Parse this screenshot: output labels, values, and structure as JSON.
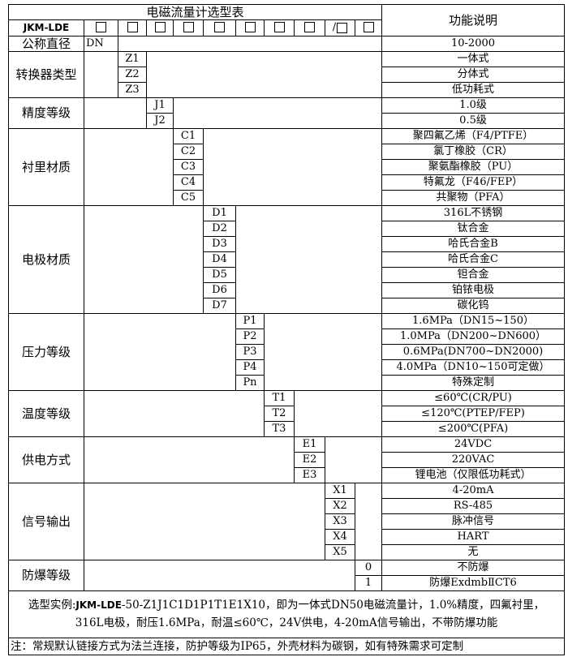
{
  "header": {
    "title": "电磁流量计选型表",
    "function_title": "功能说明",
    "model_prefix": "JKM-LDE",
    "slash": "/"
  },
  "groups": [
    {
      "label": "公称直径",
      "col": 1,
      "rows": [
        {
          "code": "DN",
          "desc": "10-2000"
        }
      ]
    },
    {
      "label": "转换器类型",
      "col": 2,
      "rows": [
        {
          "code": "Z1",
          "desc": "一体式"
        },
        {
          "code": "Z2",
          "desc": "分体式"
        },
        {
          "code": "Z3",
          "desc": "低功耗式"
        }
      ]
    },
    {
      "label": "精度等级",
      "col": 3,
      "rows": [
        {
          "code": "J1",
          "desc": "1.0级"
        },
        {
          "code": "J2",
          "desc": "0.5级"
        }
      ]
    },
    {
      "label": "衬里材质",
      "col": 4,
      "rows": [
        {
          "code": "C1",
          "desc": "聚四氟乙烯（F4/PTFE）"
        },
        {
          "code": "C2",
          "desc": "氯丁橡胶（CR）"
        },
        {
          "code": "C3",
          "desc": "聚氨酯橡胶（PU）"
        },
        {
          "code": "C4",
          "desc": "特氟龙（F46/FEP）"
        },
        {
          "code": "C5",
          "desc": "共聚物（PFA）"
        }
      ]
    },
    {
      "label": "电极材质",
      "col": 5,
      "rows": [
        {
          "code": "D1",
          "desc": "316L不锈钢"
        },
        {
          "code": "D2",
          "desc": "钛合金"
        },
        {
          "code": "D3",
          "desc": "哈氏合金B"
        },
        {
          "code": "D4",
          "desc": "哈氏合金C"
        },
        {
          "code": "D5",
          "desc": "钽合金"
        },
        {
          "code": "D6",
          "desc": "铂铱电极"
        },
        {
          "code": "D7",
          "desc": "碳化钨"
        }
      ]
    },
    {
      "label": "压力等级",
      "col": 6,
      "rows": [
        {
          "code": "P1",
          "desc": "1.6MPa（DN15~150）"
        },
        {
          "code": "P2",
          "desc": "1.0MPa（DN200~DN600）"
        },
        {
          "code": "P3",
          "desc": "0.6MPa(DN700~DN2000)"
        },
        {
          "code": "P4",
          "desc": "4.0MPa（DN10~150可定做）"
        },
        {
          "code": "Pn",
          "desc": "特殊定制"
        }
      ]
    },
    {
      "label": "温度等级",
      "col": 7,
      "rows": [
        {
          "code": "T1",
          "desc": "≤60℃(CR/PU)"
        },
        {
          "code": "T2",
          "desc": "≤120℃(PTEP/FEP)"
        },
        {
          "code": "T3",
          "desc": "≤200℃(PFA)"
        }
      ]
    },
    {
      "label": "供电方式",
      "col": 8,
      "rows": [
        {
          "code": "E1",
          "desc": "24VDC"
        },
        {
          "code": "E2",
          "desc": "220VAC"
        },
        {
          "code": "E3",
          "desc": "锂电池（仅限低功耗式）"
        }
      ]
    },
    {
      "label": "信号输出",
      "col": 9,
      "rows": [
        {
          "code": "X1",
          "desc": "4-20mA"
        },
        {
          "code": "X2",
          "desc": "RS-485"
        },
        {
          "code": "X3",
          "desc": "脉冲信号"
        },
        {
          "code": "X4",
          "desc": "HART"
        },
        {
          "code": "X5",
          "desc": "无"
        }
      ]
    },
    {
      "label": "防爆等级",
      "col": 10,
      "rows": [
        {
          "code": "0",
          "desc": "不防爆"
        },
        {
          "code": "1",
          "desc": "防爆ExdmbⅡCT6"
        }
      ]
    }
  ],
  "example": {
    "prefix": "选型实例:",
    "model": "JKM-LDE",
    "line1_rest": "-50-Z1J1C1D1P1T1E1X10，即为一体式DN50电磁流量计，1.0%精度，四氟衬里，",
    "line2": "316L电极，耐压1.6MPa，耐温≤60℃，24V供电，4-20mA信号输出，不带防爆功能"
  },
  "note": "注：常规默认链接方式为法兰连接，防护等级为IP65，外壳材料为碳钢，如有特殊需求可定制"
}
